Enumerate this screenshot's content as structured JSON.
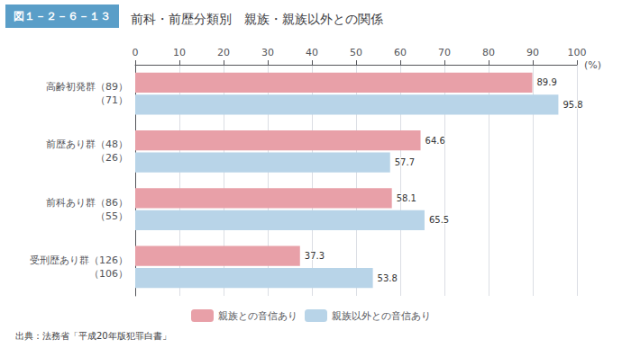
{
  "chart_data": {
    "type": "bar",
    "orientation": "horizontal",
    "title": "前科・前歴分類別　親族・親族以外との関係",
    "annotations": [
      "図１－２－６－１３",
      "出典：法務省「平成20年版犯罪白書」"
    ],
    "xlabel": "(%)",
    "categories": [
      "高齢初発群（89）\n（71）",
      "前歴あり群（48）\n（26）",
      "前科あり群（86）\n（55）",
      "受刑歴あり群（126）\n（106）"
    ],
    "series": [
      {
        "name": "親族との音信あり",
        "color": "#e8a0a8",
        "values": [
          89.9,
          64.6,
          58.1,
          37.3
        ]
      },
      {
        "name": "親族以外との音信あり",
        "color": "#b8d4e8",
        "values": [
          95.8,
          57.7,
          65.5,
          53.8
        ]
      }
    ],
    "xlim": [
      0,
      100
    ],
    "xticks": [
      0,
      10,
      20,
      30,
      40,
      50,
      60,
      70,
      80,
      90,
      100
    ],
    "grid": true,
    "legend": "bottom",
    "data_labels": true
  }
}
